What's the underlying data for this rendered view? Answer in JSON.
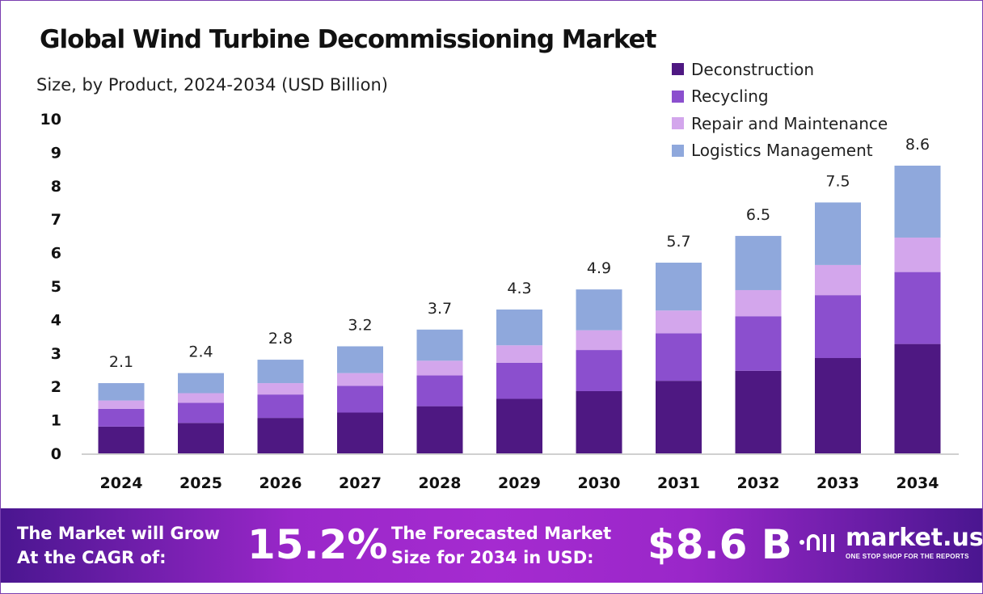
{
  "chart_data": {
    "type": "bar",
    "stacked": true,
    "title": "Global Wind Turbine Decommissioning Market",
    "subtitle": "Size, by Product, 2024-2034 (USD Billion)",
    "categories": [
      "2024",
      "2025",
      "2026",
      "2027",
      "2028",
      "2029",
      "2030",
      "2031",
      "2032",
      "2033",
      "2034"
    ],
    "totals": [
      "2.1",
      "2.4",
      "2.8",
      "3.2",
      "3.7",
      "4.3",
      "4.9",
      "5.7",
      "6.5",
      "7.5",
      "8.6"
    ],
    "series": [
      {
        "name": "Deconstruction",
        "color": "#4e1882",
        "values": [
          0.8,
          0.91,
          1.06,
          1.22,
          1.41,
          1.63,
          1.86,
          2.17,
          2.47,
          2.85,
          3.27
        ]
      },
      {
        "name": "Recycling",
        "color": "#8b4fce",
        "values": [
          0.53,
          0.6,
          0.7,
          0.8,
          0.92,
          1.08,
          1.23,
          1.42,
          1.63,
          1.88,
          2.15
        ]
      },
      {
        "name": "Repair and Maintenance",
        "color": "#d3a6ec",
        "values": [
          0.25,
          0.29,
          0.34,
          0.38,
          0.44,
          0.52,
          0.59,
          0.68,
          0.78,
          0.9,
          1.03
        ]
      },
      {
        "name": "Logistics Management",
        "color": "#8fa8dc",
        "values": [
          0.52,
          0.6,
          0.7,
          0.8,
          0.93,
          1.07,
          1.22,
          1.43,
          1.62,
          1.87,
          2.15
        ]
      }
    ],
    "ylim": [
      0,
      10
    ],
    "yticks": [
      "0",
      "1",
      "2",
      "3",
      "4",
      "5",
      "6",
      "7",
      "8",
      "9",
      "10"
    ],
    "grid": false,
    "legend": "top-right"
  },
  "banner": {
    "cagr_label_1": "The Market will Grow",
    "cagr_label_2": "At the CAGR of:",
    "cagr_value": "15.2%",
    "forecast_label_1": "The Forecasted Market",
    "forecast_label_2": "Size for 2034 in USD:",
    "forecast_value": "$8.6 B",
    "logo_text": "market.us",
    "logo_tagline": "ONE STOP SHOP FOR THE REPORTS"
  }
}
